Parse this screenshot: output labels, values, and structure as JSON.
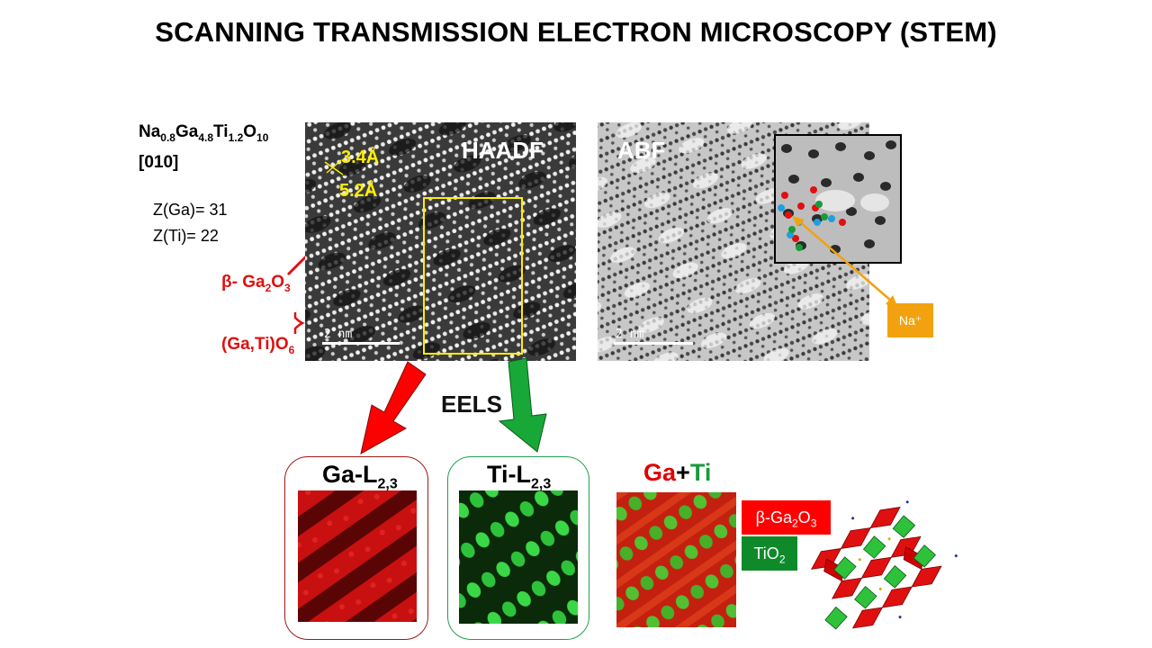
{
  "title": "SCANNING TRANSMISSION ELECTRON MICROSCOPY (STEM)",
  "sample": {
    "formula_parts": [
      "Na",
      "0.8",
      "Ga",
      "4.8",
      "Ti",
      "1.2",
      "O",
      "10"
    ],
    "zone_axis": "[010]",
    "z_ga": "Z(Ga)= 31",
    "z_ti": "Z(Ti)= 22"
  },
  "labels": {
    "beta_ga2o3_prefix": "β- Ga",
    "sub2": "2",
    "o": "O",
    "sub3": "3",
    "gati_prefix": "(Ga,Ti)O",
    "sub6": "6"
  },
  "haadf": {
    "label": "HAADF",
    "d1": "3.4Å",
    "d2": "5.2Å",
    "scale": "2 nm"
  },
  "abf": {
    "label": "ABF",
    "scale": "2 nm"
  },
  "na_label": "Na⁺",
  "eels_label": "EELS",
  "maps": {
    "ga_prefix": "Ga-L",
    "ga_sub": "2,3",
    "ti_prefix": "Ti-L",
    "ti_sub": "2,3",
    "combo_ga": "Ga",
    "combo_plus": "+",
    "combo_ti": "Ti"
  },
  "legend": {
    "beta_prefix": "β-Ga",
    "sub2": "2",
    "o": "O",
    "sub3": "3",
    "tio_prefix": "TiO",
    "tio_sub": "2"
  },
  "colors": {
    "red": "#e00000",
    "green": "#1a9a3c",
    "yellow": "#ffee00",
    "orange": "#f2a20f",
    "box_red_border": "#a01818",
    "box_green_border": "#20a050",
    "legend_green": "#0f8a2a"
  }
}
